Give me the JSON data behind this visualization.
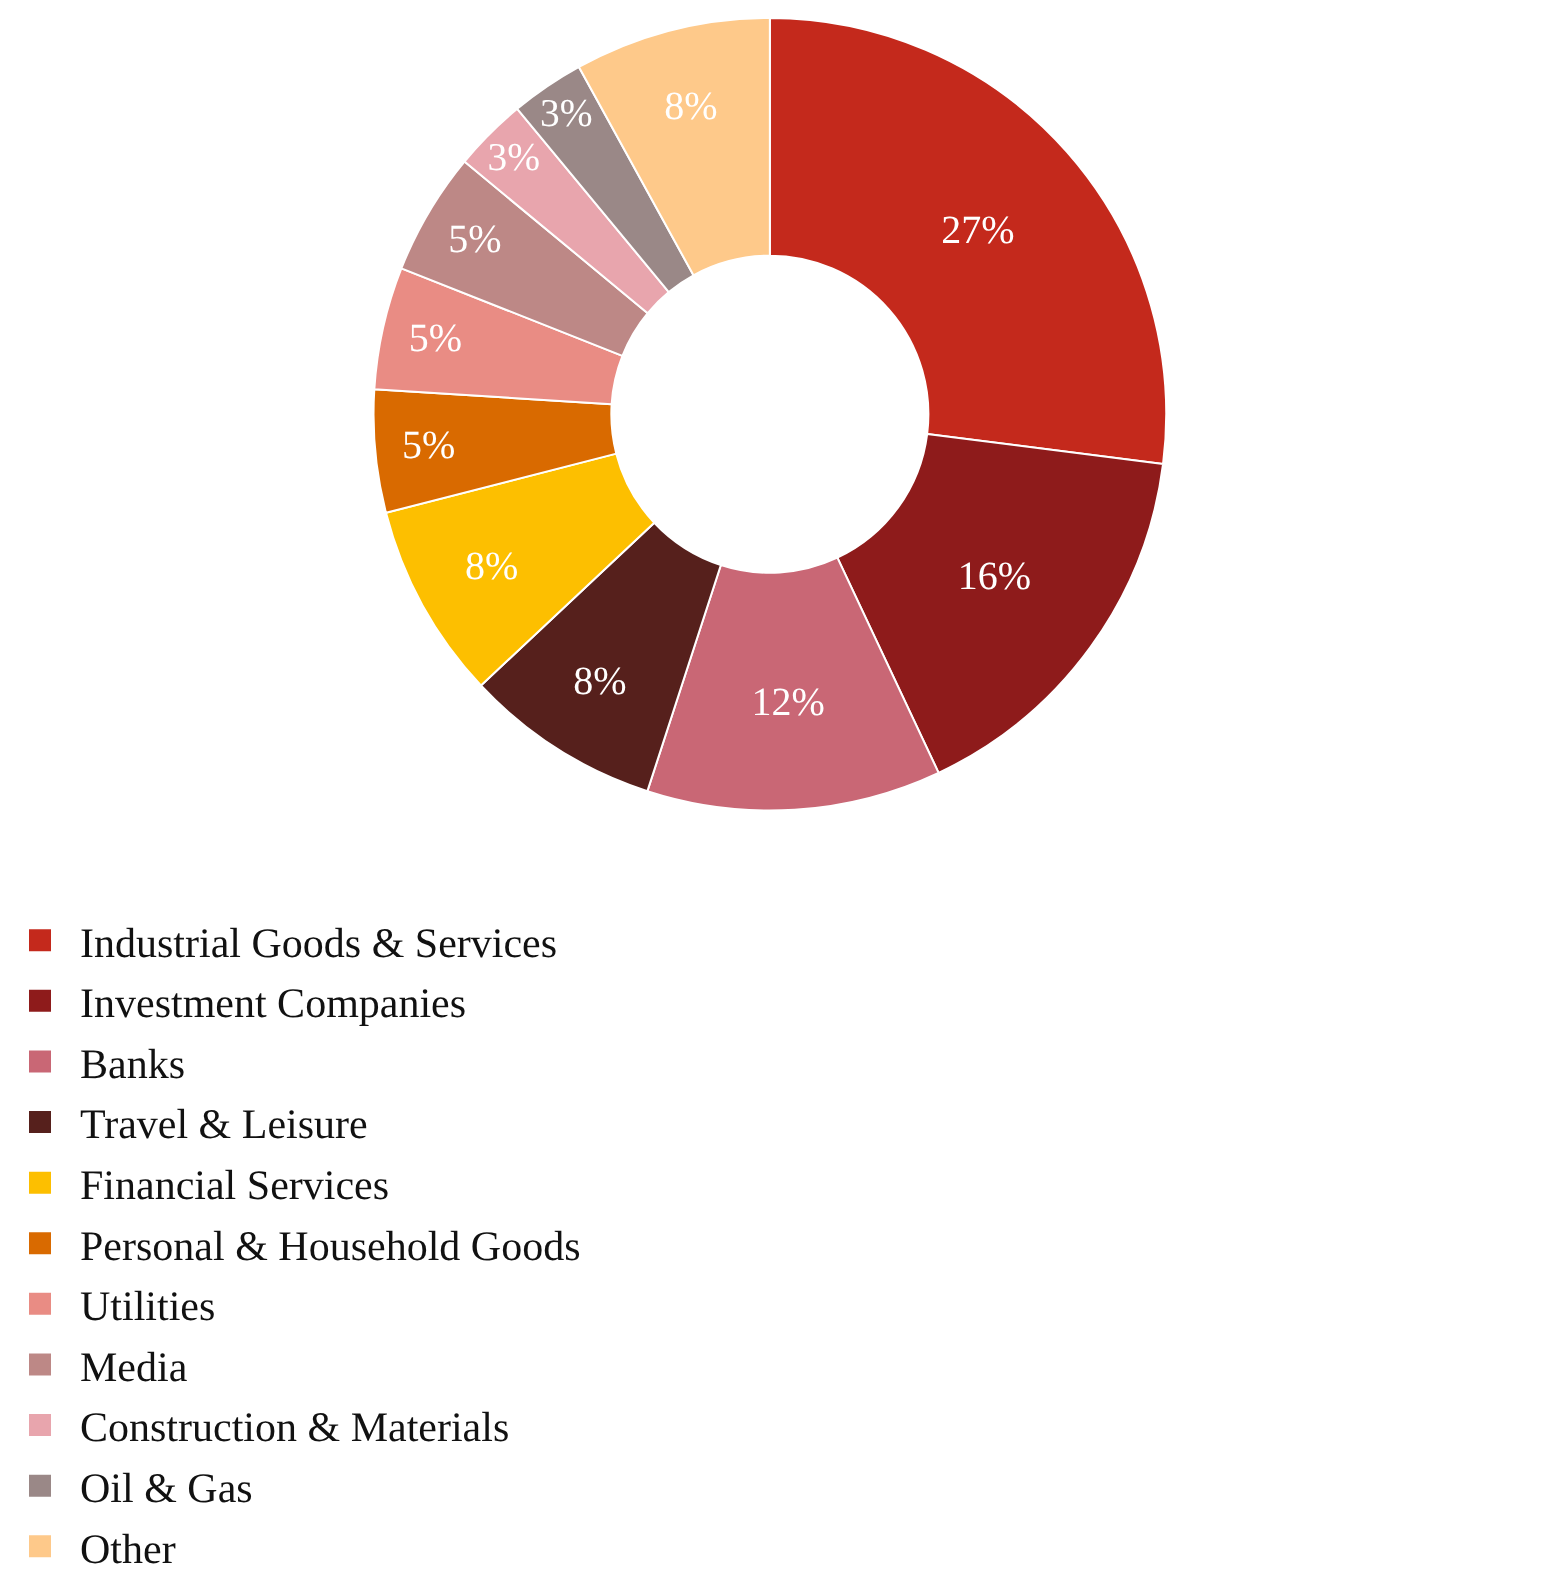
{
  "chart_data": {
    "type": "donut",
    "categories": [
      "Industrial Goods & Services",
      "Investment Companies",
      "Banks",
      "Travel & Leisure",
      "Financial Services",
      "Personal & Household Goods",
      "Utilities",
      "Media",
      "Construction & Materials",
      "Oil & Gas",
      "Other"
    ],
    "values": [
      27,
      16,
      12,
      8,
      8,
      5,
      5,
      5,
      3,
      3,
      8
    ],
    "value_labels": [
      "27%",
      "16%",
      "12%",
      "8%",
      "8%",
      "5%",
      "5%",
      "5%",
      "3%",
      "3%",
      "8%"
    ],
    "colors": [
      "#c4291c",
      "#8e1b1b",
      "#c96775",
      "#56201c",
      "#fdbf00",
      "#d96a00",
      "#e98c84",
      "#bd8886",
      "#e8a5ad",
      "#9a8887",
      "#fec98a"
    ],
    "legend": "bottom"
  }
}
